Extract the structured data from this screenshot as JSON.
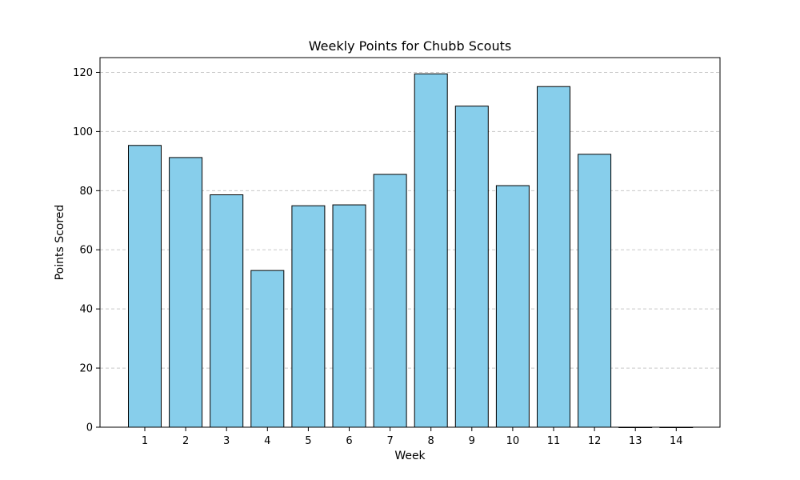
{
  "chart_data": {
    "type": "bar",
    "title": "Weekly Points for Chubb Scouts",
    "xlabel": "Week",
    "ylabel": "Points Scored",
    "categories": [
      "1",
      "2",
      "3",
      "4",
      "5",
      "6",
      "7",
      "8",
      "9",
      "10",
      "11",
      "12",
      "13",
      "14"
    ],
    "values": [
      95.3,
      91.2,
      78.6,
      53.0,
      74.9,
      75.2,
      85.5,
      119.5,
      108.6,
      81.7,
      115.2,
      92.3,
      0,
      0
    ],
    "ylim": [
      0,
      125
    ],
    "yticks": [
      0,
      20,
      40,
      60,
      80,
      100,
      120
    ],
    "grid": "y-dashed",
    "colors": {
      "bar_fill": "#87ceeb",
      "bar_edge": "#000000",
      "grid": "#c8c8c8"
    }
  }
}
